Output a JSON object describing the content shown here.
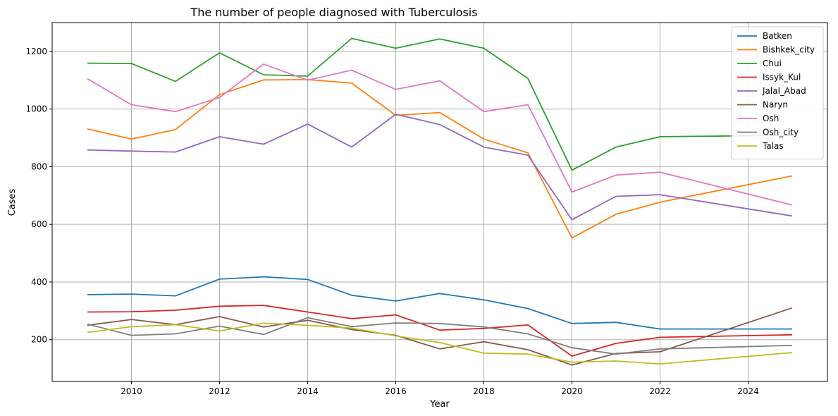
{
  "chart_data": {
    "type": "line",
    "title": "The number of people diagnosed with Tuberculosis",
    "xlabel": "Year",
    "ylabel": "Cases",
    "xlim": [
      2008.2,
      2025.8
    ],
    "ylim": [
      55,
      1300
    ],
    "xticks": [
      2010,
      2012,
      2014,
      2016,
      2018,
      2020,
      2022,
      2024
    ],
    "yticks": [
      200,
      400,
      600,
      800,
      1000,
      1200
    ],
    "grid": true,
    "legend_position": "top-right",
    "x": [
      2009,
      2010,
      2011,
      2012,
      2013,
      2014,
      2015,
      2016,
      2017,
      2018,
      2019,
      2020,
      2021,
      2022,
      2025
    ],
    "series": [
      {
        "name": "Batken",
        "color": "#1f77b4",
        "values": [
          356,
          358,
          352,
          410,
          418,
          409,
          354,
          334,
          360,
          338,
          308,
          256,
          260,
          237,
          237
        ]
      },
      {
        "name": "Bishkek_city",
        "color": "#ff7f0e",
        "values": [
          931,
          896,
          929,
          1050,
          1101,
          1102,
          1090,
          978,
          988,
          896,
          848,
          553,
          635,
          677,
          768
        ]
      },
      {
        "name": "Chui",
        "color": "#2ca02c",
        "values": [
          1159,
          1158,
          1096,
          1195,
          1119,
          1114,
          1245,
          1211,
          1243,
          1211,
          1106,
          788,
          868,
          904,
          909
        ]
      },
      {
        "name": "Issyk_Kul",
        "color": "#d62728",
        "values": [
          296,
          297,
          302,
          316,
          319,
          296,
          273,
          286,
          233,
          239,
          251,
          143,
          187,
          208,
          217
        ]
      },
      {
        "name": "Jalal_Abad",
        "color": "#9467bd",
        "values": [
          858,
          854,
          851,
          904,
          878,
          948,
          868,
          982,
          946,
          868,
          840,
          616,
          697,
          703,
          629
        ]
      },
      {
        "name": "Naryn",
        "color": "#8c564b",
        "values": [
          250,
          270,
          252,
          280,
          244,
          267,
          235,
          215,
          168,
          193,
          165,
          112,
          152,
          158,
          310
        ]
      },
      {
        "name": "Osh",
        "color": "#e377c2",
        "values": [
          1105,
          1015,
          991,
          1040,
          1156,
          1100,
          1135,
          1068,
          1098,
          991,
          1015,
          712,
          771,
          781,
          667
        ]
      },
      {
        "name": "Osh_city",
        "color": "#7f7f7f",
        "values": [
          254,
          215,
          220,
          247,
          218,
          276,
          245,
          258,
          256,
          244,
          220,
          172,
          150,
          168,
          180
        ]
      },
      {
        "name": "Talas",
        "color": "#bcbd22",
        "values": [
          225,
          245,
          252,
          230,
          257,
          250,
          240,
          213,
          190,
          153,
          150,
          122,
          126,
          116,
          155
        ]
      }
    ]
  }
}
